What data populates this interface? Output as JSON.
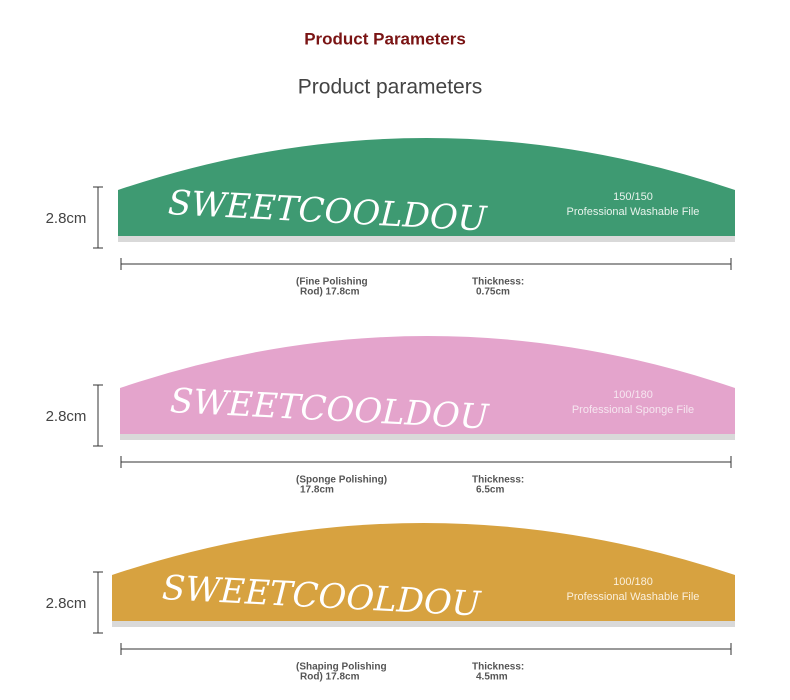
{
  "header": {
    "title": "Product Parameters",
    "subtitle": "Product parameters"
  },
  "products": [
    {
      "height": "2.8cm",
      "brand": "SWEETCOOLDOU",
      "grit": "150/150",
      "kind": "Professional Washable File",
      "name_lines": [
        "(Fine Polishing",
        "Rod) 17.8cm"
      ],
      "thickness_lines": [
        "Thickness:",
        "0.75cm"
      ]
    },
    {
      "height": "2.8cm",
      "brand": "SWEETCOOLDOU",
      "grit": "100/180",
      "kind": "Professional Sponge File",
      "name_lines": [
        "(Sponge Polishing)",
        "17.8cm"
      ],
      "thickness_lines": [
        "Thickness:",
        "6.5cm"
      ]
    },
    {
      "height": "2.8cm",
      "brand": "SWEETCOOLDOU",
      "grit": "100/180",
      "kind": "Professional Washable File",
      "name_lines": [
        "(Shaping Polishing",
        "Rod) 17.8cm"
      ],
      "thickness_lines": [
        "Thickness:",
        "4.5mm"
      ]
    }
  ]
}
